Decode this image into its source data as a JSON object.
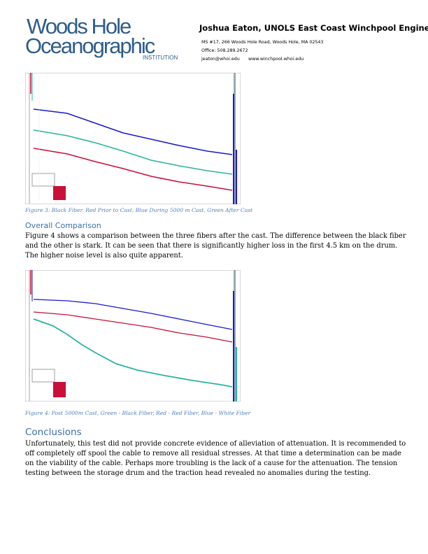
{
  "header": {
    "logo_line1": "Woods Hole",
    "logo_line2": "Oceanographic",
    "logo_line3": "INSTITUTION",
    "name": "Joshua Eaton, UNOLS East Coast Winchpool Engineer",
    "address": "MS #17, 266 Woods Hole Road, Woods Hole, MA 02543",
    "office": "Office: 508.289.2672",
    "email": "jeaton@whoi.edu",
    "website": "www.winchpool.whoi.edu"
  },
  "figure3": {
    "caption": "Figure 3: Black Fiber.  Red Prior to Cast, Blue During 5000 m Cast, Green After Cast"
  },
  "overall": {
    "heading": "Overall Comparison",
    "paragraph": "Figure 4 shows a comparison between the three fibers after the cast. The difference between the black fiber and the other is stark. It can be seen that there is significantly higher loss in the first 4.5 km on the drum. The higher noise level is also quite apparent."
  },
  "figure4": {
    "caption": "Figure 4: Post 5000m Cast, Green - Black Fiber, Red - Red Fiber, Blue - White Fiber"
  },
  "conclusions": {
    "heading": "Conclusions",
    "paragraph": "Unfortunately, this test did not provide concrete evidence of alleviation of attenuation. It is recommended to off completely off spool the cable to remove all residual stresses. At that time a determination can be made on the viability of the cable. Perhaps more troubling is the lack of a cause for the attenuation. The tension testing between the storage drum and the traction head revealed no anomalies during the testing."
  },
  "colors": {
    "logo": "#2f5d8a",
    "heading": "#3a6ea5",
    "caption": "#4f81bd",
    "trace_blue": "#1a1acc",
    "trace_green": "#2bb5a0",
    "trace_red": "#c8103a"
  }
}
